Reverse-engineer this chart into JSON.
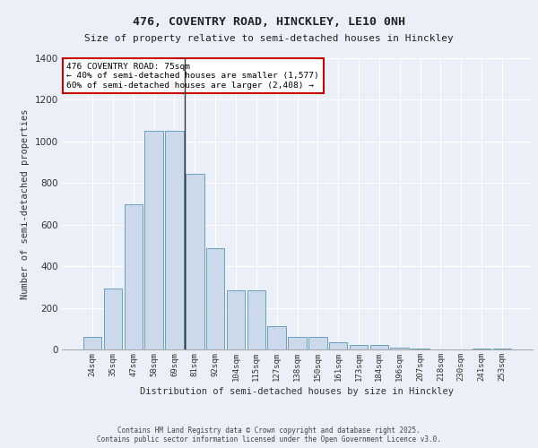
{
  "title1": "476, COVENTRY ROAD, HINCKLEY, LE10 0NH",
  "title2": "Size of property relative to semi-detached houses in Hinckley",
  "xlabel": "Distribution of semi-detached houses by size in Hinckley",
  "ylabel": "Number of semi-detached properties",
  "bar_labels": [
    "24sqm",
    "35sqm",
    "47sqm",
    "58sqm",
    "69sqm",
    "81sqm",
    "92sqm",
    "104sqm",
    "115sqm",
    "127sqm",
    "138sqm",
    "150sqm",
    "161sqm",
    "173sqm",
    "184sqm",
    "196sqm",
    "207sqm",
    "218sqm",
    "230sqm",
    "241sqm",
    "253sqm"
  ],
  "bar_values": [
    60,
    295,
    700,
    1050,
    1050,
    845,
    485,
    285,
    285,
    110,
    60,
    60,
    35,
    20,
    20,
    10,
    5,
    0,
    0,
    5,
    5
  ],
  "bar_color": "#ccd9ea",
  "bar_edge_color": "#6a9fc0",
  "background_color": "#eaeff8",
  "grid_color": "#ffffff",
  "annotation_text": "476 COVENTRY ROAD: 75sqm\n← 40% of semi-detached houses are smaller (1,577)\n60% of semi-detached houses are larger (2,408) →",
  "annotation_box_color": "#ffffff",
  "annotation_box_edge": "#cc0000",
  "vline_x": 4.5,
  "ylim": [
    0,
    1400
  ],
  "yticks": [
    0,
    200,
    400,
    600,
    800,
    1000,
    1200,
    1400
  ],
  "footer1": "Contains HM Land Registry data © Crown copyright and database right 2025.",
  "footer2": "Contains public sector information licensed under the Open Government Licence v3.0."
}
